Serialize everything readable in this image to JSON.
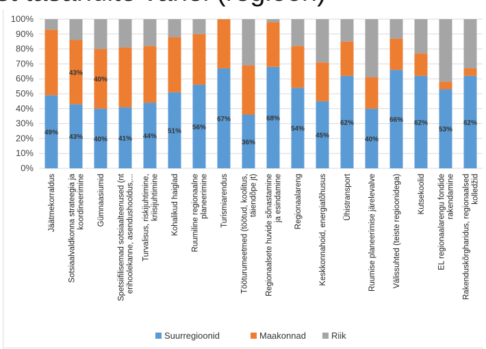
{
  "slide": {
    "title_fragment": "st tasandite vahel (regioon)"
  },
  "colors": {
    "Suurregioonid": "#5b9bd5",
    "Maakonnad": "#ed7d31",
    "Riik": "#a5a5a5",
    "grid": "#d9d9d9"
  },
  "chart_data": {
    "type": "bar",
    "stacked": true,
    "orientation": "vertical",
    "ylim": [
      0,
      100
    ],
    "yticks": [
      "0%",
      "10%",
      "20%",
      "30%",
      "40%",
      "50%",
      "60%",
      "70%",
      "80%",
      "90%",
      "100%"
    ],
    "grid": true,
    "legend_position": "bottom",
    "categories": [
      [
        "Jäätmekorraldus"
      ],
      [
        "Sotsiaalvaldkonna strateegia ja",
        "koordineerimine"
      ],
      [
        "Gümnaasiumid"
      ],
      [
        "Spetsiifilisemad sotsiaalteenused (nt",
        "erihoolekanne, asendushooldus,..."
      ],
      [
        "Turvalisus, riskijuhtimine,",
        "kriisijuhtimine"
      ],
      [
        "Kohalikud haiglad"
      ],
      [
        "Ruumiline regionaalne",
        "planeerimine"
      ],
      [
        "Turismiarendus"
      ],
      [
        "Tööturumeetmed (töötud, koolitus,",
        "täiendõpe jt)"
      ],
      [
        "Regionaalsete huvide sõnastamine",
        "ja esindamine"
      ],
      [
        "Regionaalareng"
      ],
      [
        "Keskkonnahoid, energiatõhusus"
      ],
      [
        "Ühistransport"
      ],
      [
        "Ruumise planeerimise järelevalve"
      ],
      [
        "Välissuhted (teiste regioonidega)"
      ],
      [
        "Kutsekoolid"
      ],
      [
        "EL regionaalarengu fondide",
        "rakendamine"
      ],
      [
        "Rakenduskõrgharidus, regionaalsed",
        "kolledžid"
      ]
    ],
    "series": [
      {
        "name": "Suurregioonid",
        "values": [
          49,
          43,
          40,
          41,
          44,
          51,
          56,
          67,
          36,
          68,
          54,
          45,
          62,
          40,
          66,
          62,
          53,
          62
        ],
        "labels": [
          "49%",
          "43%",
          "40%",
          "41%",
          "44%",
          "51%",
          "56%",
          "67%",
          "36%",
          "68%",
          "54%",
          "45%",
          "62%",
          "40%",
          "66%",
          "62%",
          "53%",
          "62%"
        ]
      },
      {
        "name": "Maakonnad",
        "values": [
          44,
          43,
          40,
          40,
          38,
          37,
          34,
          33,
          33,
          30,
          28,
          26,
          23,
          21,
          21,
          15,
          5,
          5
        ],
        "labels": [
          "",
          "43%",
          "40%",
          "",
          "",
          "",
          "",
          "",
          "",
          "",
          "",
          "",
          "",
          "",
          "",
          "",
          "",
          ""
        ]
      },
      {
        "name": "Riik",
        "values": [
          7,
          14,
          20,
          19,
          18,
          12,
          10,
          0,
          31,
          2,
          18,
          29,
          15,
          39,
          13,
          23,
          42,
          33
        ],
        "labels": [
          "",
          "",
          "",
          "",
          "",
          "",
          "",
          "",
          "",
          "",
          "",
          "",
          "",
          "",
          "",
          "",
          "",
          ""
        ]
      }
    ]
  }
}
